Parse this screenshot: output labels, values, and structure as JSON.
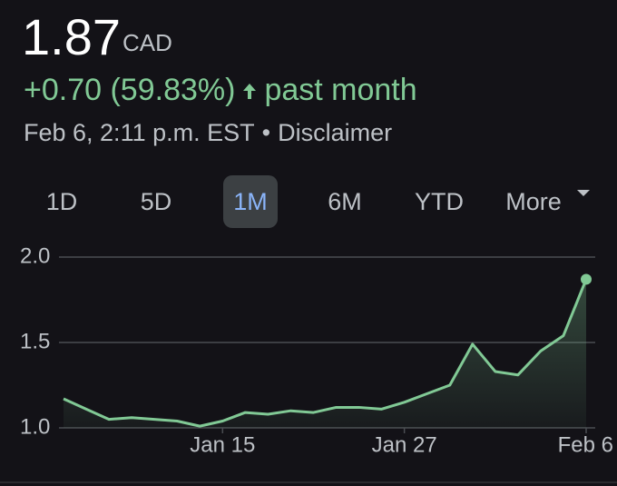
{
  "quote": {
    "price": "1.87",
    "currency": "CAD",
    "change": "+0.70 (59.83%)",
    "period": "past month",
    "timestamp": "Feb 6, 2:11 p.m. EST",
    "separator": "•",
    "disclaimer": "Disclaimer"
  },
  "ranges": {
    "items": [
      "1D",
      "5D",
      "1M",
      "6M",
      "YTD",
      "More"
    ],
    "selected_index": 2
  },
  "chart_data": {
    "type": "line",
    "color": "#81c995",
    "grid": true,
    "categories": [
      null,
      null,
      null,
      null,
      null,
      null,
      null,
      "Jan 15",
      null,
      null,
      null,
      null,
      null,
      null,
      null,
      "Jan 27",
      null,
      null,
      null,
      null,
      null,
      null,
      null,
      "Feb 6"
    ],
    "values": [
      1.17,
      1.11,
      1.05,
      1.06,
      1.05,
      1.04,
      1.01,
      1.04,
      1.09,
      1.08,
      1.1,
      1.09,
      1.12,
      1.12,
      1.11,
      1.15,
      1.2,
      1.25,
      1.49,
      1.33,
      1.31,
      1.45,
      1.54,
      1.87
    ],
    "ylim": [
      1.0,
      2.0
    ],
    "yticks": [
      {
        "value": 1.0,
        "label": "1.0"
      },
      {
        "value": 1.5,
        "label": "1.5"
      },
      {
        "value": 2.0,
        "label": "2.0"
      }
    ]
  }
}
